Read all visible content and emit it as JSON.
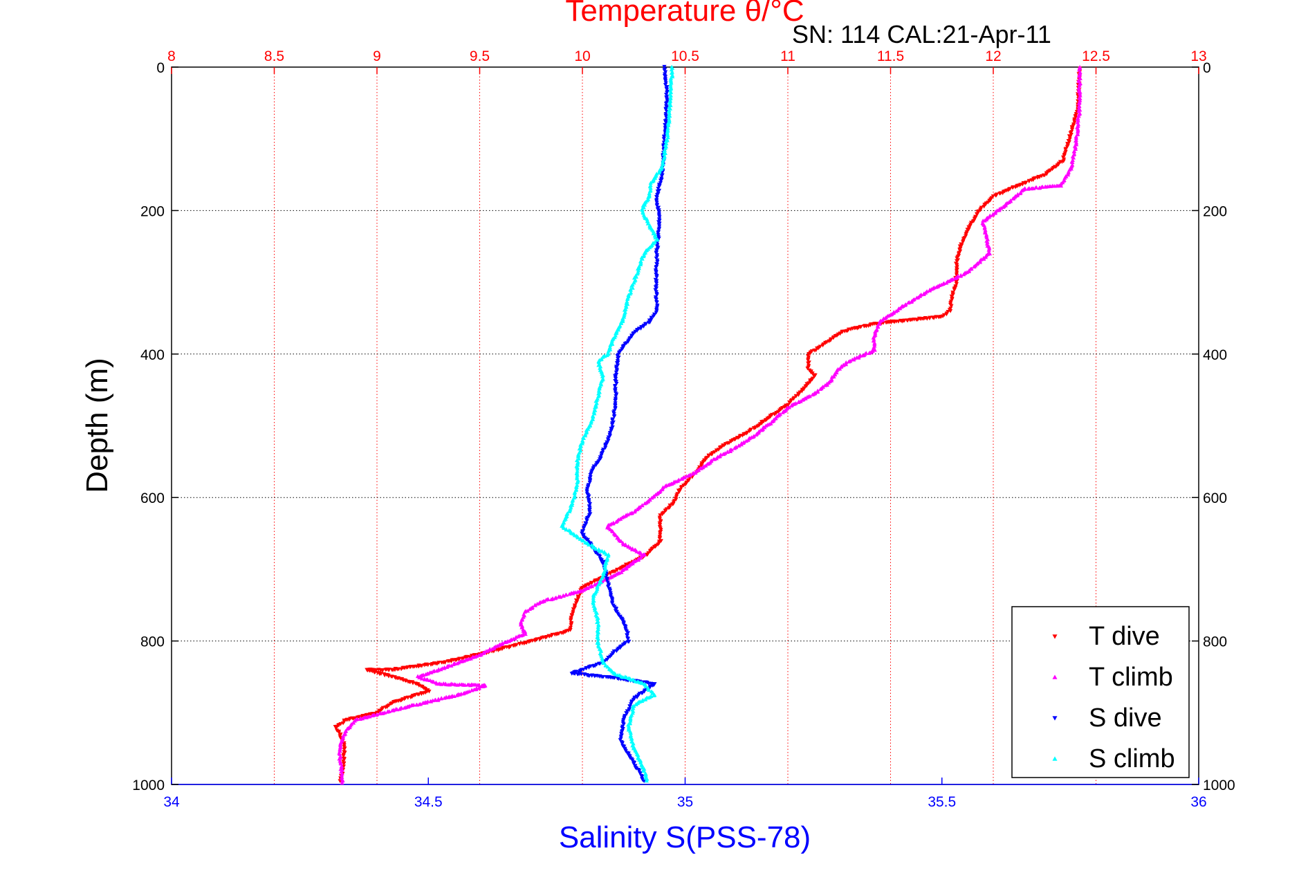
{
  "chart_data": {
    "type": "scatter",
    "title": "Temperature θ/°C",
    "subtitle": "SN: 114  CAL:21-Apr-11",
    "xlabel": "Salinity S(PSS-78)",
    "ylabel": "Depth (m)",
    "x_bottom": {
      "min": 34,
      "max": 36,
      "ticks": [
        "34",
        "34.5",
        "35",
        "35.5",
        "36"
      ],
      "color": "#0000ff"
    },
    "x_top": {
      "min": 8,
      "max": 13,
      "ticks": [
        "8",
        "8.5",
        "9",
        "9.5",
        "10",
        "10.5",
        "11",
        "11.5",
        "12",
        "12.5",
        "13"
      ],
      "color": "#ff0000"
    },
    "y": {
      "min": 0,
      "max": 1000,
      "reversed": true,
      "ticks": [
        "0",
        "200",
        "400",
        "600",
        "800",
        "1000"
      ]
    },
    "grid": true,
    "legend_position": "bottom-right",
    "legend": [
      "T dive",
      "T climb",
      "S dive",
      "S climb"
    ],
    "series": [
      {
        "name": "T dive",
        "axis": "top",
        "color": "#ff0000",
        "marker": "triangle-down",
        "points": [
          [
            12.42,
            2
          ],
          [
            12.41,
            60
          ],
          [
            12.37,
            100
          ],
          [
            12.34,
            130
          ],
          [
            12.25,
            150
          ],
          [
            12.12,
            165
          ],
          [
            12.0,
            180
          ],
          [
            11.93,
            200
          ],
          [
            11.88,
            225
          ],
          [
            11.84,
            250
          ],
          [
            11.82,
            275
          ],
          [
            11.82,
            300
          ],
          [
            11.8,
            320
          ],
          [
            11.79,
            340
          ],
          [
            11.75,
            348
          ],
          [
            11.6,
            352
          ],
          [
            11.42,
            358
          ],
          [
            11.27,
            368
          ],
          [
            11.18,
            385
          ],
          [
            11.1,
            400
          ],
          [
            11.1,
            420
          ],
          [
            11.13,
            430
          ],
          [
            11.07,
            450
          ],
          [
            11.0,
            470
          ],
          [
            10.9,
            490
          ],
          [
            10.8,
            510
          ],
          [
            10.7,
            525
          ],
          [
            10.6,
            545
          ],
          [
            10.57,
            560
          ],
          [
            10.52,
            575
          ],
          [
            10.47,
            590
          ],
          [
            10.45,
            605
          ],
          [
            10.38,
            625
          ],
          [
            10.38,
            645
          ],
          [
            10.38,
            660
          ],
          [
            10.31,
            680
          ],
          [
            10.14,
            705
          ],
          [
            10.0,
            725
          ],
          [
            9.97,
            745
          ],
          [
            9.95,
            765
          ],
          [
            9.94,
            785
          ],
          [
            9.75,
            800
          ],
          [
            9.55,
            815
          ],
          [
            9.32,
            830
          ],
          [
            9.07,
            840
          ],
          [
            8.95,
            840
          ],
          [
            9.2,
            860
          ],
          [
            9.25,
            870
          ],
          [
            9.08,
            885
          ],
          [
            9.0,
            900
          ],
          [
            8.85,
            910
          ],
          [
            8.8,
            920
          ],
          [
            8.82,
            930
          ],
          [
            8.84,
            945
          ],
          [
            8.84,
            965
          ],
          [
            8.83,
            985
          ],
          [
            8.82,
            995
          ]
        ]
      },
      {
        "name": "T climb",
        "axis": "top",
        "color": "#ff00ff",
        "marker": "triangle-up",
        "points": [
          [
            12.42,
            0
          ],
          [
            12.42,
            60
          ],
          [
            12.4,
            110
          ],
          [
            12.38,
            140
          ],
          [
            12.33,
            165
          ],
          [
            12.15,
            170
          ],
          [
            12.07,
            190
          ],
          [
            11.95,
            215
          ],
          [
            11.97,
            240
          ],
          [
            11.98,
            260
          ],
          [
            11.88,
            285
          ],
          [
            11.7,
            310
          ],
          [
            11.55,
            335
          ],
          [
            11.45,
            355
          ],
          [
            11.42,
            375
          ],
          [
            11.42,
            395
          ],
          [
            11.3,
            410
          ],
          [
            11.25,
            420
          ],
          [
            11.2,
            440
          ],
          [
            11.13,
            455
          ],
          [
            11.0,
            475
          ],
          [
            10.92,
            495
          ],
          [
            10.83,
            515
          ],
          [
            10.75,
            530
          ],
          [
            10.65,
            545
          ],
          [
            10.55,
            565
          ],
          [
            10.4,
            585
          ],
          [
            10.32,
            605
          ],
          [
            10.25,
            620
          ],
          [
            10.12,
            640
          ],
          [
            10.2,
            665
          ],
          [
            10.3,
            680
          ],
          [
            10.18,
            705
          ],
          [
            10.0,
            730
          ],
          [
            9.8,
            745
          ],
          [
            9.72,
            760
          ],
          [
            9.7,
            775
          ],
          [
            9.72,
            790
          ],
          [
            9.6,
            805
          ],
          [
            9.5,
            820
          ],
          [
            9.2,
            850
          ],
          [
            9.3,
            860
          ],
          [
            9.53,
            862
          ],
          [
            9.4,
            875
          ],
          [
            9.1,
            895
          ],
          [
            8.9,
            910
          ],
          [
            8.85,
            925
          ],
          [
            8.82,
            945
          ],
          [
            8.82,
            965
          ],
          [
            8.83,
            985
          ],
          [
            8.83,
            998
          ]
        ]
      },
      {
        "name": "S dive",
        "axis": "bottom",
        "color": "#0000ff",
        "marker": "triangle-down",
        "points": [
          [
            34.96,
            0
          ],
          [
            34.965,
            40
          ],
          [
            34.96,
            100
          ],
          [
            34.955,
            150
          ],
          [
            34.945,
            180
          ],
          [
            34.95,
            220
          ],
          [
            34.945,
            260
          ],
          [
            34.943,
            300
          ],
          [
            34.945,
            340
          ],
          [
            34.93,
            355
          ],
          [
            34.9,
            370
          ],
          [
            34.87,
            400
          ],
          [
            34.865,
            430
          ],
          [
            34.865,
            470
          ],
          [
            34.855,
            510
          ],
          [
            34.835,
            545
          ],
          [
            34.82,
            560
          ],
          [
            34.81,
            590
          ],
          [
            34.815,
            620
          ],
          [
            34.8,
            650
          ],
          [
            34.82,
            670
          ],
          [
            34.84,
            690
          ],
          [
            34.85,
            720
          ],
          [
            34.86,
            750
          ],
          [
            34.885,
            780
          ],
          [
            34.89,
            800
          ],
          [
            34.87,
            810
          ],
          [
            34.84,
            830
          ],
          [
            34.78,
            845
          ],
          [
            34.87,
            852
          ],
          [
            34.94,
            860
          ],
          [
            34.9,
            880
          ],
          [
            34.88,
            910
          ],
          [
            34.875,
            940
          ],
          [
            34.9,
            970
          ],
          [
            34.92,
            995
          ]
        ]
      },
      {
        "name": "S climb",
        "axis": "bottom",
        "color": "#00ffff",
        "marker": "triangle-up",
        "points": [
          [
            34.975,
            0
          ],
          [
            34.97,
            60
          ],
          [
            34.965,
            100
          ],
          [
            34.955,
            140
          ],
          [
            34.935,
            160
          ],
          [
            34.93,
            180
          ],
          [
            34.915,
            200
          ],
          [
            34.945,
            240
          ],
          [
            34.92,
            260
          ],
          [
            34.91,
            280
          ],
          [
            34.89,
            320
          ],
          [
            34.88,
            350
          ],
          [
            34.86,
            380
          ],
          [
            34.85,
            400
          ],
          [
            34.83,
            410
          ],
          [
            34.84,
            430
          ],
          [
            34.83,
            460
          ],
          [
            34.82,
            490
          ],
          [
            34.8,
            520
          ],
          [
            34.79,
            550
          ],
          [
            34.79,
            580
          ],
          [
            34.78,
            610
          ],
          [
            34.76,
            640
          ],
          [
            34.8,
            660
          ],
          [
            34.85,
            680
          ],
          [
            34.84,
            710
          ],
          [
            34.82,
            740
          ],
          [
            34.83,
            770
          ],
          [
            34.83,
            800
          ],
          [
            34.84,
            830
          ],
          [
            34.86,
            845
          ],
          [
            34.92,
            860
          ],
          [
            34.94,
            875
          ],
          [
            34.9,
            890
          ],
          [
            34.89,
            920
          ],
          [
            34.9,
            950
          ],
          [
            34.92,
            980
          ],
          [
            34.925,
            995
          ]
        ]
      }
    ]
  }
}
